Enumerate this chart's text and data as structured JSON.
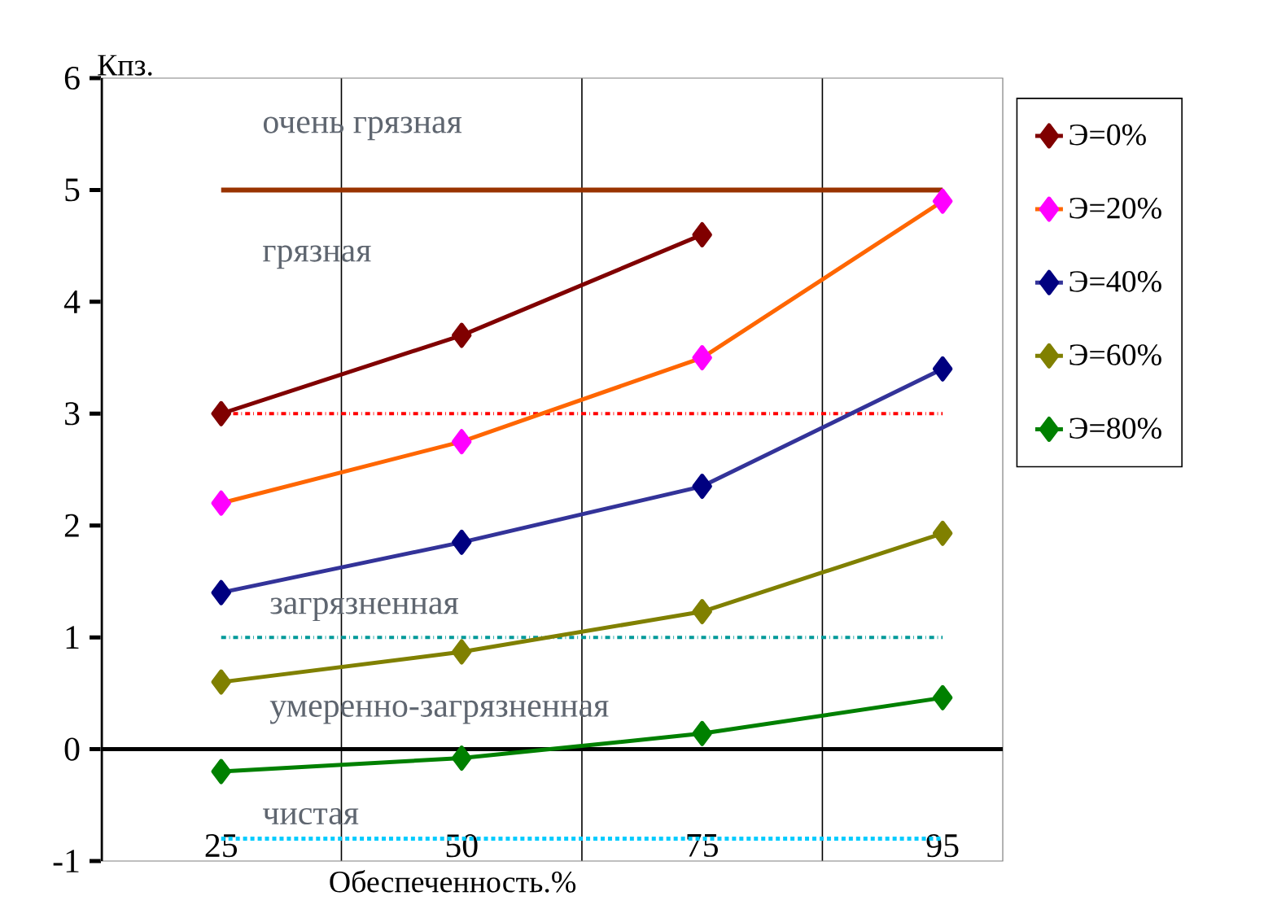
{
  "chart_data": {
    "type": "line",
    "xlabel": "Обеспеченность.%",
    "ylabel": "Кпз.",
    "categories": [
      "25",
      "50",
      "75",
      "95"
    ],
    "series": [
      {
        "name": "Э=0%",
        "color": "#800000",
        "values": [
          3.0,
          3.7,
          4.6,
          null
        ]
      },
      {
        "name": "Э=20%",
        "color": "#ff6600",
        "colors": [
          "#ff00ff",
          "#ff00ff",
          "#ff00ff",
          "#ff00ff"
        ],
        "values": [
          2.2,
          2.75,
          3.5,
          4.9
        ]
      },
      {
        "name": "Э=40%",
        "color": "#333399",
        "colors": [
          "#000080",
          "#000080",
          "#000080",
          "#000080"
        ],
        "values": [
          1.4,
          1.85,
          2.35,
          3.4
        ]
      },
      {
        "name": "Э=60%",
        "color": "#808000",
        "values": [
          0.6,
          0.87,
          1.23,
          1.93
        ]
      },
      {
        "name": "Э=80%",
        "color": "#008000",
        "values": [
          -0.2,
          -0.08,
          0.14,
          0.46
        ]
      }
    ],
    "ylim": [
      -1,
      6
    ],
    "yticks": [
      -1,
      0,
      1,
      2,
      3,
      4,
      5,
      6
    ],
    "ref_lines": [
      {
        "axis": "y",
        "value": 5,
        "color": "#993300",
        "line_style": "solid"
      },
      {
        "axis": "y",
        "value": 3,
        "color": "#ff0000",
        "line_style": "dashdot"
      },
      {
        "axis": "y",
        "value": 1,
        "color": "#009999",
        "line_style": "dashdot"
      },
      {
        "axis": "y",
        "value": -0.8,
        "color": "#00ccff",
        "line_style": "dotted"
      }
    ],
    "annotations": [
      "очень грязная",
      "грязная",
      "загрязненная",
      "умеренно-загрязненная",
      "чистая"
    ],
    "grid": "x",
    "legend": "right",
    "marker": "diamond",
    "line_style": "solid"
  }
}
